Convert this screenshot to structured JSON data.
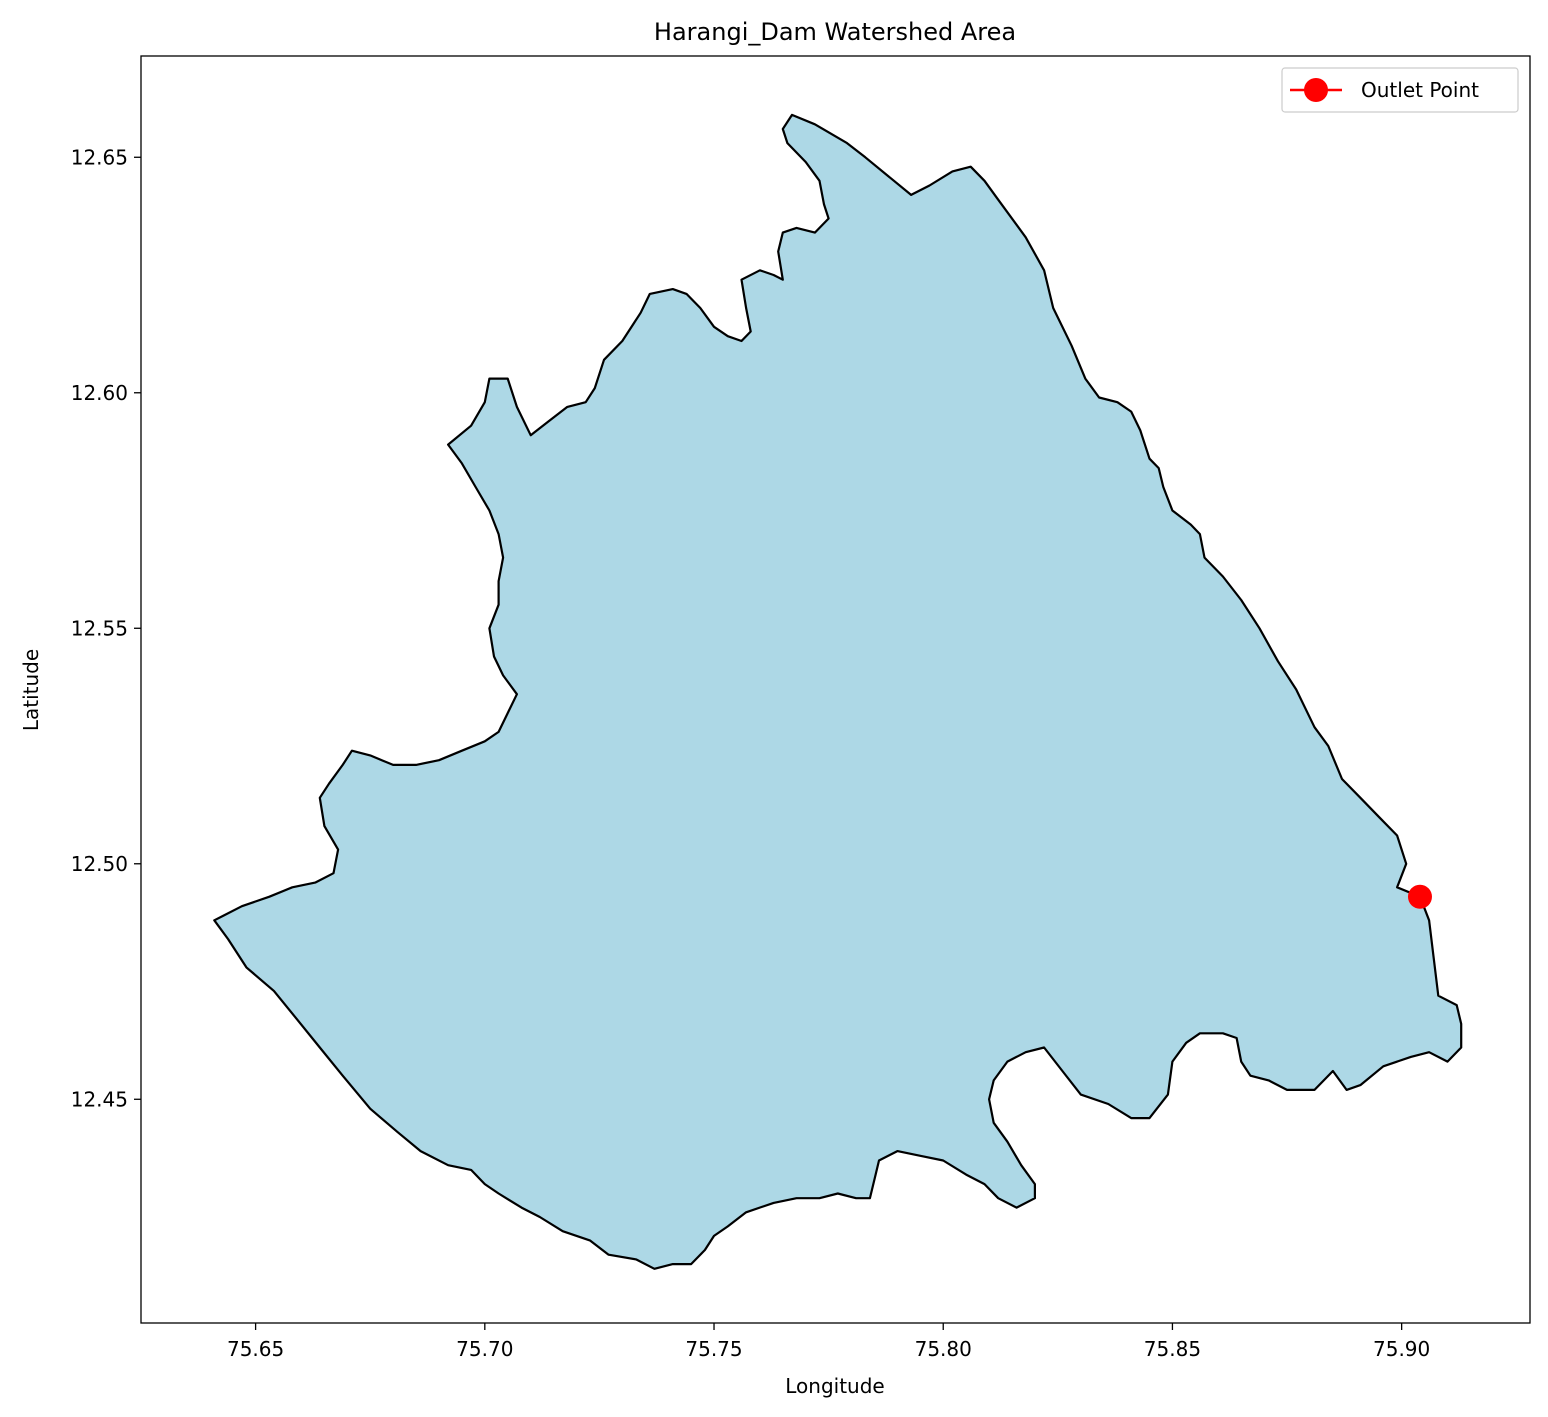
{
  "chart_data": {
    "type": "map",
    "title": "Harangi_Dam Watershed Area",
    "xlabel": "Longitude",
    "ylabel": "Latitude",
    "xlim": [
      75.625,
      75.928
    ],
    "ylim": [
      12.4025,
      12.6715
    ],
    "x_ticks": [
      75.65,
      75.7,
      75.75,
      75.8,
      75.85,
      75.9
    ],
    "x_tick_labels": [
      "75.65",
      "75.70",
      "75.75",
      "75.80",
      "75.85",
      "75.90"
    ],
    "y_ticks": [
      12.45,
      12.5,
      12.55,
      12.6,
      12.65
    ],
    "y_tick_labels": [
      "12.45",
      "12.50",
      "12.55",
      "12.60",
      "12.65"
    ],
    "grid": false,
    "legend": {
      "placement": "top-right",
      "entries": [
        "Outlet Point"
      ]
    },
    "colors": {
      "watershed_fill": "#add8e6",
      "boundary": "#000000",
      "outlet": "#ff0000"
    },
    "watershed_boundary": [
      [
        75.767,
        12.659
      ],
      [
        75.772,
        12.657
      ],
      [
        75.779,
        12.653
      ],
      [
        75.783,
        12.65
      ],
      [
        75.788,
        12.646
      ],
      [
        75.793,
        12.642
      ],
      [
        75.797,
        12.644
      ],
      [
        75.802,
        12.647
      ],
      [
        75.806,
        12.648
      ],
      [
        75.809,
        12.645
      ],
      [
        75.812,
        12.641
      ],
      [
        75.818,
        12.633
      ],
      [
        75.822,
        12.626
      ],
      [
        75.824,
        12.618
      ],
      [
        75.828,
        12.61
      ],
      [
        75.831,
        12.603
      ],
      [
        75.834,
        12.599
      ],
      [
        75.838,
        12.598
      ],
      [
        75.841,
        12.596
      ],
      [
        75.843,
        12.592
      ],
      [
        75.845,
        12.586
      ],
      [
        75.847,
        12.584
      ],
      [
        75.848,
        12.58
      ],
      [
        75.85,
        12.575
      ],
      [
        75.854,
        12.572
      ],
      [
        75.856,
        12.57
      ],
      [
        75.857,
        12.565
      ],
      [
        75.861,
        12.561
      ],
      [
        75.865,
        12.556
      ],
      [
        75.869,
        12.55
      ],
      [
        75.873,
        12.543
      ],
      [
        75.877,
        12.537
      ],
      [
        75.881,
        12.529
      ],
      [
        75.884,
        12.525
      ],
      [
        75.887,
        12.518
      ],
      [
        75.891,
        12.514
      ],
      [
        75.895,
        12.51
      ],
      [
        75.899,
        12.506
      ],
      [
        75.901,
        12.5
      ],
      [
        75.899,
        12.495
      ],
      [
        75.904,
        12.493
      ],
      [
        75.906,
        12.488
      ],
      [
        75.907,
        12.48
      ],
      [
        75.908,
        12.472
      ],
      [
        75.912,
        12.47
      ],
      [
        75.913,
        12.466
      ],
      [
        75.913,
        12.461
      ],
      [
        75.91,
        12.458
      ],
      [
        75.906,
        12.46
      ],
      [
        75.902,
        12.459
      ],
      [
        75.896,
        12.457
      ],
      [
        75.891,
        12.453
      ],
      [
        75.888,
        12.452
      ],
      [
        75.885,
        12.456
      ],
      [
        75.881,
        12.452
      ],
      [
        75.875,
        12.452
      ],
      [
        75.871,
        12.454
      ],
      [
        75.867,
        12.455
      ],
      [
        75.865,
        12.458
      ],
      [
        75.864,
        12.463
      ],
      [
        75.861,
        12.464
      ],
      [
        75.856,
        12.464
      ],
      [
        75.853,
        12.462
      ],
      [
        75.85,
        12.458
      ],
      [
        75.849,
        12.451
      ],
      [
        75.845,
        12.446
      ],
      [
        75.841,
        12.446
      ],
      [
        75.836,
        12.449
      ],
      [
        75.83,
        12.451
      ],
      [
        75.826,
        12.456
      ],
      [
        75.822,
        12.461
      ],
      [
        75.818,
        12.46
      ],
      [
        75.814,
        12.458
      ],
      [
        75.811,
        12.454
      ],
      [
        75.81,
        12.45
      ],
      [
        75.811,
        12.445
      ],
      [
        75.814,
        12.441
      ],
      [
        75.817,
        12.436
      ],
      [
        75.82,
        12.432
      ],
      [
        75.82,
        12.429
      ],
      [
        75.816,
        12.427
      ],
      [
        75.812,
        12.429
      ],
      [
        75.809,
        12.432
      ],
      [
        75.805,
        12.434
      ],
      [
        75.8,
        12.437
      ],
      [
        75.795,
        12.438
      ],
      [
        75.79,
        12.439
      ],
      [
        75.786,
        12.437
      ],
      [
        75.785,
        12.433
      ],
      [
        75.784,
        12.429
      ],
      [
        75.781,
        12.429
      ],
      [
        75.777,
        12.43
      ],
      [
        75.773,
        12.429
      ],
      [
        75.768,
        12.429
      ],
      [
        75.763,
        12.428
      ],
      [
        75.757,
        12.426
      ],
      [
        75.753,
        12.423
      ],
      [
        75.75,
        12.421
      ],
      [
        75.748,
        12.418
      ],
      [
        75.745,
        12.415
      ],
      [
        75.741,
        12.415
      ],
      [
        75.737,
        12.414
      ],
      [
        75.733,
        12.416
      ],
      [
        75.727,
        12.417
      ],
      [
        75.723,
        12.42
      ],
      [
        75.717,
        12.422
      ],
      [
        75.712,
        12.425
      ],
      [
        75.708,
        12.427
      ],
      [
        75.703,
        12.43
      ],
      [
        75.7,
        12.432
      ],
      [
        75.697,
        12.435
      ],
      [
        75.692,
        12.436
      ],
      [
        75.686,
        12.439
      ],
      [
        75.681,
        12.443
      ],
      [
        75.675,
        12.448
      ],
      [
        75.669,
        12.455
      ],
      [
        75.664,
        12.461
      ],
      [
        75.659,
        12.467
      ],
      [
        75.654,
        12.473
      ],
      [
        75.648,
        12.478
      ],
      [
        75.644,
        12.484
      ],
      [
        75.641,
        12.488
      ],
      [
        75.643,
        12.489
      ],
      [
        75.647,
        12.491
      ],
      [
        75.653,
        12.493
      ],
      [
        75.658,
        12.495
      ],
      [
        75.663,
        12.496
      ],
      [
        75.667,
        12.498
      ],
      [
        75.668,
        12.503
      ],
      [
        75.665,
        12.508
      ],
      [
        75.664,
        12.514
      ],
      [
        75.666,
        12.517
      ],
      [
        75.669,
        12.521
      ],
      [
        75.671,
        12.524
      ],
      [
        75.675,
        12.523
      ],
      [
        75.68,
        12.521
      ],
      [
        75.685,
        12.521
      ],
      [
        75.69,
        12.522
      ],
      [
        75.695,
        12.524
      ],
      [
        75.7,
        12.526
      ],
      [
        75.703,
        12.528
      ],
      [
        75.705,
        12.532
      ],
      [
        75.707,
        12.536
      ],
      [
        75.704,
        12.54
      ],
      [
        75.702,
        12.544
      ],
      [
        75.701,
        12.55
      ],
      [
        75.703,
        12.555
      ],
      [
        75.703,
        12.56
      ],
      [
        75.704,
        12.565
      ],
      [
        75.703,
        12.57
      ],
      [
        75.701,
        12.575
      ],
      [
        75.698,
        12.58
      ],
      [
        75.695,
        12.585
      ],
      [
        75.692,
        12.589
      ],
      [
        75.697,
        12.593
      ],
      [
        75.7,
        12.598
      ],
      [
        75.701,
        12.603
      ],
      [
        75.705,
        12.603
      ],
      [
        75.707,
        12.597
      ],
      [
        75.71,
        12.591
      ],
      [
        75.714,
        12.594
      ],
      [
        75.718,
        12.597
      ],
      [
        75.722,
        12.598
      ],
      [
        75.724,
        12.601
      ],
      [
        75.726,
        12.607
      ],
      [
        75.73,
        12.611
      ],
      [
        75.734,
        12.617
      ],
      [
        75.736,
        12.621
      ],
      [
        75.741,
        12.622
      ],
      [
        75.744,
        12.621
      ],
      [
        75.747,
        12.618
      ],
      [
        75.75,
        12.614
      ],
      [
        75.753,
        12.612
      ],
      [
        75.756,
        12.611
      ],
      [
        75.758,
        12.613
      ],
      [
        75.757,
        12.618
      ],
      [
        75.756,
        12.624
      ],
      [
        75.76,
        12.626
      ],
      [
        75.763,
        12.625
      ],
      [
        75.765,
        12.624
      ],
      [
        75.764,
        12.63
      ],
      [
        75.765,
        12.634
      ],
      [
        75.768,
        12.635
      ],
      [
        75.772,
        12.634
      ],
      [
        75.775,
        12.637
      ],
      [
        75.774,
        12.64
      ],
      [
        75.773,
        12.645
      ],
      [
        75.77,
        12.649
      ],
      [
        75.766,
        12.653
      ],
      [
        75.765,
        12.656
      ]
    ],
    "outlet_point": {
      "label": "Outlet Point",
      "lon": 75.904,
      "lat": 12.493
    }
  }
}
